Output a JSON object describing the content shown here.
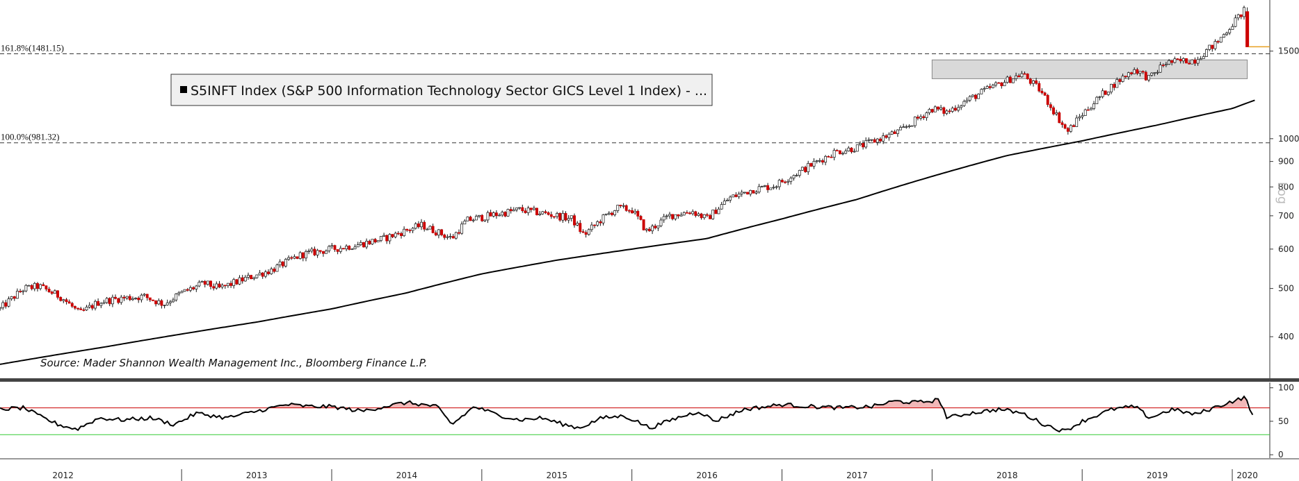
{
  "chart_data": [
    {
      "type": "candlestick",
      "scale": "log",
      "ylim": [
        330,
        1900
      ],
      "y_ticks": [
        {
          "value": 400,
          "label": "400"
        },
        {
          "value": 500,
          "label": "500"
        },
        {
          "value": 600,
          "label": "600"
        },
        {
          "value": 700,
          "label": "700"
        },
        {
          "value": 800,
          "label": "800"
        },
        {
          "value": 900,
          "label": "900"
        },
        {
          "value": 1000,
          "label": "1000"
        },
        {
          "value": 1500,
          "label": "1500"
        }
      ],
      "scale_label": "Log",
      "legend_label": "S5INFT Index (S&P 500 Information Technology Sector GICS Level 1 Index) - ...",
      "source_note": "Source: Mader Shannon Wealth Management Inc., Bloomberg Finance L.P.",
      "fib_levels": [
        {
          "label": "161.8%(1481.15)",
          "value": 1481.15
        },
        {
          "label": "100.0%(981.32)",
          "value": 981.32
        }
      ],
      "resistance_zone": {
        "x_start": 2018.0,
        "x_end": 2020.1,
        "low": 1320,
        "high": 1440
      },
      "price_path": [
        [
          2011.79,
          455
        ],
        [
          2011.95,
          500
        ],
        [
          2012.05,
          505
        ],
        [
          2012.2,
          480
        ],
        [
          2012.32,
          445
        ],
        [
          2012.45,
          470
        ],
        [
          2012.6,
          478
        ],
        [
          2012.75,
          482
        ],
        [
          2012.88,
          465
        ],
        [
          2013.0,
          490
        ],
        [
          2013.15,
          512
        ],
        [
          2013.25,
          500
        ],
        [
          2013.4,
          520
        ],
        [
          2013.6,
          545
        ],
        [
          2013.8,
          585
        ],
        [
          2014.0,
          600
        ],
        [
          2014.15,
          610
        ],
        [
          2014.35,
          630
        ],
        [
          2014.5,
          655
        ],
        [
          2014.6,
          670
        ],
        [
          2014.8,
          630
        ],
        [
          2014.9,
          685
        ],
        [
          2015.05,
          700
        ],
        [
          2015.25,
          720
        ],
        [
          2015.45,
          705
        ],
        [
          2015.6,
          690
        ],
        [
          2015.68,
          640
        ],
        [
          2015.8,
          690
        ],
        [
          2015.9,
          725
        ],
        [
          2016.0,
          720
        ],
        [
          2016.1,
          650
        ],
        [
          2016.25,
          700
        ],
        [
          2016.4,
          715
        ],
        [
          2016.5,
          690
        ],
        [
          2016.65,
          760
        ],
        [
          2016.8,
          790
        ],
        [
          2016.95,
          805
        ],
        [
          2017.15,
          870
        ],
        [
          2017.35,
          940
        ],
        [
          2017.5,
          960
        ],
        [
          2017.65,
          1000
        ],
        [
          2017.8,
          1040
        ],
        [
          2018.0,
          1150
        ],
        [
          2018.1,
          1130
        ],
        [
          2018.2,
          1180
        ],
        [
          2018.4,
          1270
        ],
        [
          2018.6,
          1350
        ],
        [
          2018.72,
          1250
        ],
        [
          2018.8,
          1150
        ],
        [
          2018.9,
          1030
        ],
        [
          2019.0,
          1120
        ],
        [
          2019.2,
          1280
        ],
        [
          2019.35,
          1380
        ],
        [
          2019.45,
          1320
        ],
        [
          2019.55,
          1420
        ],
        [
          2019.75,
          1440
        ],
        [
          2019.9,
          1560
        ],
        [
          2020.0,
          1700
        ],
        [
          2020.08,
          1810
        ]
      ],
      "last_candle": {
        "x": 2020.1,
        "open": 1800,
        "close": 1530
      },
      "last_price_value": 1530,
      "moving_average": [
        [
          2011.79,
          352
        ],
        [
          2012.5,
          382
        ],
        [
          2013.0,
          405
        ],
        [
          2013.5,
          428
        ],
        [
          2014.0,
          455
        ],
        [
          2014.5,
          490
        ],
        [
          2015.0,
          535
        ],
        [
          2015.5,
          570
        ],
        [
          2016.0,
          600
        ],
        [
          2016.5,
          630
        ],
        [
          2017.0,
          690
        ],
        [
          2017.5,
          755
        ],
        [
          2018.0,
          840
        ],
        [
          2018.5,
          925
        ],
        [
          2019.0,
          990
        ],
        [
          2019.5,
          1065
        ],
        [
          2020.0,
          1150
        ],
        [
          2020.15,
          1195
        ]
      ]
    },
    {
      "type": "line",
      "ylim": [
        -5,
        108
      ],
      "y_ticks": [
        {
          "value": 0,
          "label": "0"
        },
        {
          "value": 50,
          "label": "50"
        },
        {
          "value": 100,
          "label": "100"
        }
      ],
      "overbought": 70,
      "oversold": 30,
      "series_path": [
        [
          2011.79,
          68
        ],
        [
          2011.95,
          70
        ],
        [
          2012.05,
          58
        ],
        [
          2012.18,
          45
        ],
        [
          2012.3,
          38
        ],
        [
          2012.45,
          55
        ],
        [
          2012.6,
          52
        ],
        [
          2012.8,
          55
        ],
        [
          2012.95,
          45
        ],
        [
          2013.1,
          62
        ],
        [
          2013.3,
          55
        ],
        [
          2013.5,
          65
        ],
        [
          2013.7,
          75
        ],
        [
          2013.85,
          72
        ],
        [
          2014.0,
          72
        ],
        [
          2014.2,
          65
        ],
        [
          2014.35,
          72
        ],
        [
          2014.5,
          78
        ],
        [
          2014.7,
          72
        ],
        [
          2014.8,
          45
        ],
        [
          2014.95,
          72
        ],
        [
          2015.1,
          60
        ],
        [
          2015.25,
          52
        ],
        [
          2015.4,
          55
        ],
        [
          2015.55,
          45
        ],
        [
          2015.65,
          40
        ],
        [
          2015.8,
          55
        ],
        [
          2015.95,
          58
        ],
        [
          2016.05,
          48
        ],
        [
          2016.12,
          40
        ],
        [
          2016.3,
          55
        ],
        [
          2016.45,
          65
        ],
        [
          2016.55,
          50
        ],
        [
          2016.75,
          68
        ],
        [
          2016.9,
          72
        ],
        [
          2017.0,
          75
        ],
        [
          2017.2,
          72
        ],
        [
          2017.4,
          70
        ],
        [
          2017.6,
          72
        ],
        [
          2017.75,
          80
        ],
        [
          2017.9,
          78
        ],
        [
          2018.05,
          82
        ],
        [
          2018.1,
          55
        ],
        [
          2018.25,
          62
        ],
        [
          2018.45,
          68
        ],
        [
          2018.6,
          62
        ],
        [
          2018.75,
          45
        ],
        [
          2018.88,
          35
        ],
        [
          2019.0,
          50
        ],
        [
          2019.2,
          68
        ],
        [
          2019.35,
          72
        ],
        [
          2019.45,
          55
        ],
        [
          2019.6,
          68
        ],
        [
          2019.75,
          60
        ],
        [
          2019.9,
          72
        ],
        [
          2020.0,
          80
        ],
        [
          2020.08,
          85
        ],
        [
          2020.1,
          80
        ],
        [
          2020.15,
          50
        ]
      ]
    }
  ],
  "x_axis": {
    "domain": [
      2011.79,
      2020.25
    ],
    "year_labels": [
      {
        "x": 2012.21,
        "label": "2012"
      },
      {
        "x": 2013.5,
        "label": "2013"
      },
      {
        "x": 2014.5,
        "label": "2014"
      },
      {
        "x": 2015.5,
        "label": "2015"
      },
      {
        "x": 2016.5,
        "label": "2016"
      },
      {
        "x": 2017.5,
        "label": "2017"
      },
      {
        "x": 2018.5,
        "label": "2018"
      },
      {
        "x": 2019.5,
        "label": "2019"
      },
      {
        "x": 2020.1,
        "label": "2020"
      }
    ]
  },
  "colors": {
    "up": "#ffffff",
    "down": "#cc0000",
    "wick": "#111111",
    "moving_average": "#000000",
    "rsi_line": "#000000",
    "overbought": "#cc0000",
    "oversold": "#33cc33",
    "overbought_fill": "#f2b8b8",
    "resistance_fill": "#d9d9d9",
    "last_price": "#e8a020"
  }
}
